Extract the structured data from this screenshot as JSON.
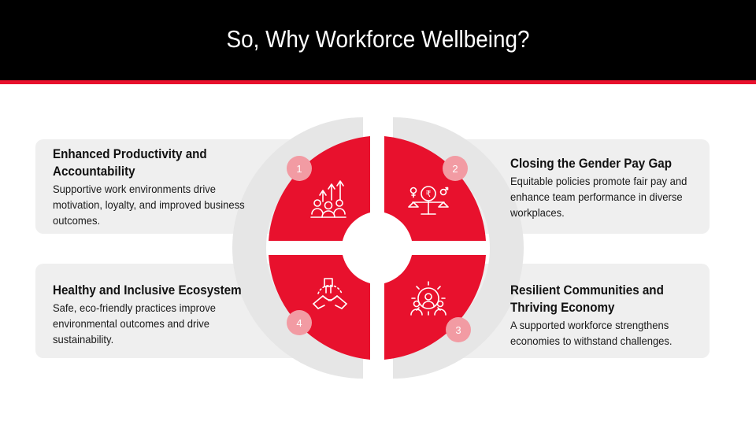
{
  "header": {
    "title": "So, Why Workforce Wellbeing?"
  },
  "colors": {
    "accent": "#e8112d",
    "header_bg": "#000000",
    "card_bg": "#efefef",
    "ring": "#e6e6e6",
    "badge": "#f29ba3"
  },
  "items": [
    {
      "number": "1",
      "heading": "Enhanced Productivity and Accountability",
      "description": "Supportive work environments drive motivation, loyalty, and improved business outcomes.",
      "icon": "team-growth-icon"
    },
    {
      "number": "2",
      "heading": "Closing the Gender Pay Gap",
      "description": "Equitable policies promote fair pay and enhance team performance in diverse workplaces.",
      "icon": "pay-balance-icon"
    },
    {
      "number": "3",
      "heading": "Resilient Communities and Thriving Economy",
      "description": "A supported workforce strengthens economies to withstand challenges.",
      "icon": "community-gear-icon"
    },
    {
      "number": "4",
      "heading": "Healthy and Inclusive Ecosystem",
      "description": "Safe, eco-friendly practices improve environmental outcomes and drive sustainability.",
      "icon": "hands-unity-icon"
    }
  ]
}
